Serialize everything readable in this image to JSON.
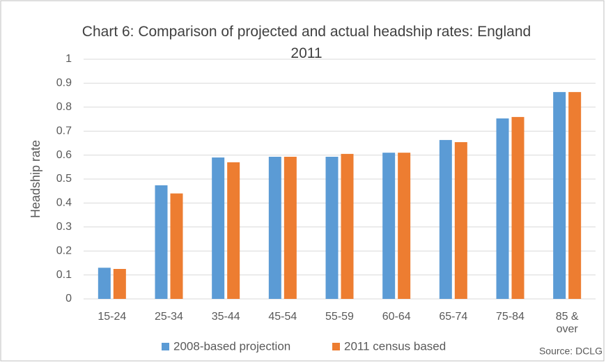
{
  "chart_data": {
    "type": "bar",
    "title": "Chart 6: Comparison of projected and actual headship rates: England 2011",
    "ylabel": "Headship rate",
    "categories": [
      "15-24",
      "25-34",
      "35-44",
      "45-54",
      "55-59",
      "60-64",
      "65-74",
      "75-84",
      "85 & over"
    ],
    "series": [
      {
        "name": "2008-based projection",
        "color": "#5b9bd5",
        "values": [
          0.13,
          0.474,
          0.59,
          0.593,
          0.593,
          0.61,
          0.663,
          0.753,
          0.863
        ]
      },
      {
        "name": "2011 census based",
        "color": "#ed7d31",
        "values": [
          0.125,
          0.44,
          0.57,
          0.593,
          0.605,
          0.61,
          0.654,
          0.759,
          0.863
        ]
      }
    ],
    "ylim": [
      0,
      1
    ],
    "yticks": [
      0,
      0.1,
      0.2,
      0.3,
      0.4,
      0.5,
      0.6,
      0.7,
      0.8,
      0.9,
      1
    ],
    "grid": true,
    "legend": "bottom",
    "annotation": "Source: DCLG"
  }
}
